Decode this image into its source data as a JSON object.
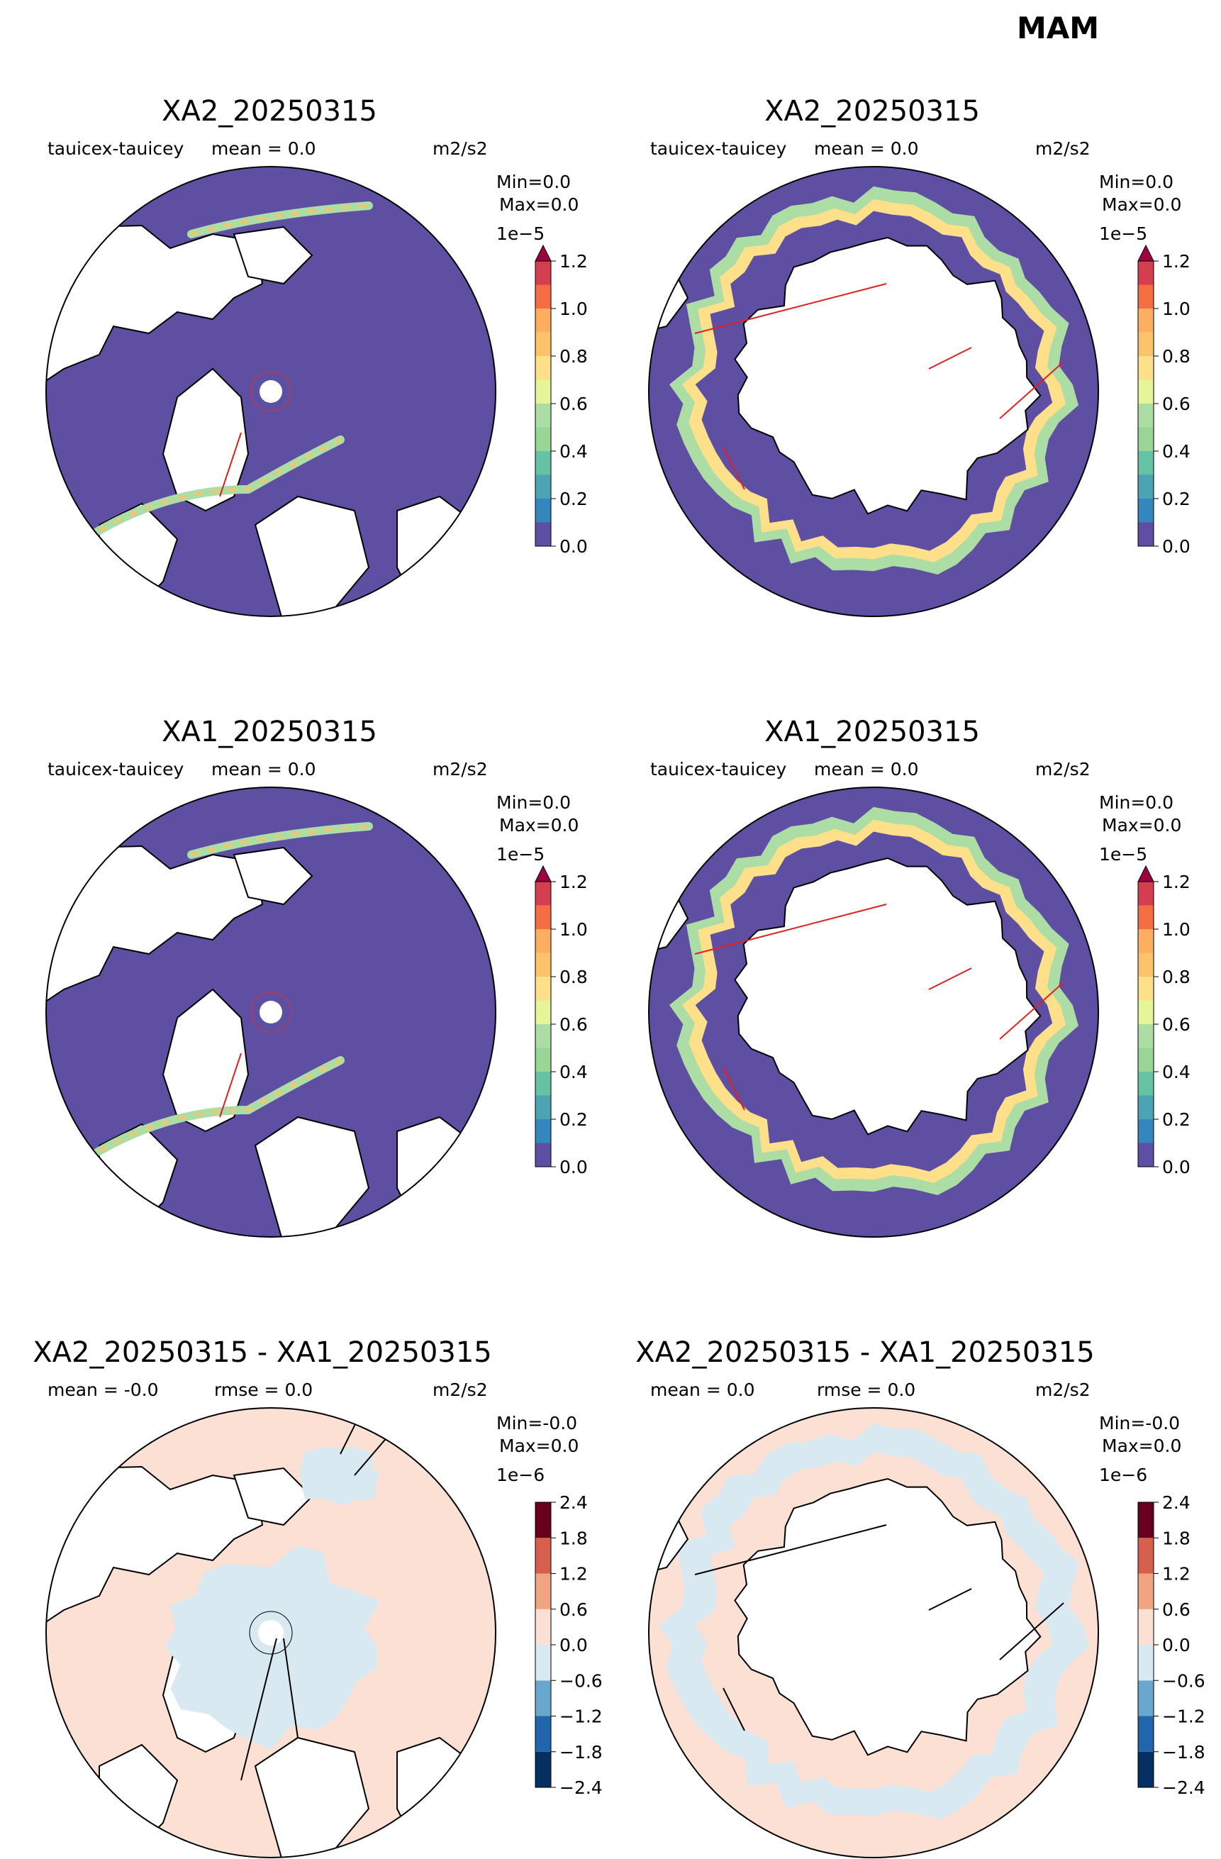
{
  "figure": {
    "season": "MAM"
  },
  "chart_data": [
    {
      "type": "heatmap",
      "projection": "north-polar-stereographic",
      "title": "XA2_20250315",
      "variable": "tauicex-tauicey",
      "stat1": "mean = 0.0",
      "stat2": "",
      "units": "m2/s2",
      "minmax": [
        "Min=0.0",
        "Max=0.0"
      ],
      "colorbar": {
        "exponent": "1e−5",
        "extend": "max",
        "ticks": [
          "1.2",
          "1.0",
          "0.8",
          "0.6",
          "0.4",
          "0.2",
          "0.0"
        ],
        "levels": [
          0.0,
          0.1,
          0.2,
          0.3,
          0.4,
          0.5,
          0.6,
          0.7,
          0.8,
          0.9,
          1.0,
          1.1,
          1.2
        ],
        "colors": [
          "#5e4fa2",
          "#3288bd",
          "#4ba3b3",
          "#66c2a5",
          "#99d594",
          "#abdda4",
          "#e6f598",
          "#fee08b",
          "#fdc36a",
          "#fdae61",
          "#f46d43",
          "#d53e4f",
          "#9e0142"
        ]
      }
    },
    {
      "type": "heatmap",
      "projection": "south-polar-stereographic",
      "title": "XA2_20250315",
      "variable": "tauicex-tauicey",
      "stat1": "mean = 0.0",
      "stat2": "",
      "units": "m2/s2",
      "minmax": [
        "Min=0.0",
        "Max=0.0"
      ],
      "colorbar": {
        "exponent": "1e−5",
        "extend": "max",
        "ticks": [
          "1.2",
          "1.0",
          "0.8",
          "0.6",
          "0.4",
          "0.2",
          "0.0"
        ],
        "levels": [
          0.0,
          0.1,
          0.2,
          0.3,
          0.4,
          0.5,
          0.6,
          0.7,
          0.8,
          0.9,
          1.0,
          1.1,
          1.2
        ],
        "colors": [
          "#5e4fa2",
          "#3288bd",
          "#4ba3b3",
          "#66c2a5",
          "#99d594",
          "#abdda4",
          "#e6f598",
          "#fee08b",
          "#fdc36a",
          "#fdae61",
          "#f46d43",
          "#d53e4f",
          "#9e0142"
        ]
      }
    },
    {
      "type": "heatmap",
      "projection": "north-polar-stereographic",
      "title": "XA1_20250315",
      "variable": "tauicex-tauicey",
      "stat1": "mean = 0.0",
      "stat2": "",
      "units": "m2/s2",
      "minmax": [
        "Min=0.0",
        "Max=0.0"
      ],
      "colorbar": {
        "exponent": "1e−5",
        "extend": "max",
        "ticks": [
          "1.2",
          "1.0",
          "0.8",
          "0.6",
          "0.4",
          "0.2",
          "0.0"
        ],
        "levels": [
          0.0,
          0.1,
          0.2,
          0.3,
          0.4,
          0.5,
          0.6,
          0.7,
          0.8,
          0.9,
          1.0,
          1.1,
          1.2
        ],
        "colors": [
          "#5e4fa2",
          "#3288bd",
          "#4ba3b3",
          "#66c2a5",
          "#99d594",
          "#abdda4",
          "#e6f598",
          "#fee08b",
          "#fdc36a",
          "#fdae61",
          "#f46d43",
          "#d53e4f",
          "#9e0142"
        ]
      }
    },
    {
      "type": "heatmap",
      "projection": "south-polar-stereographic",
      "title": "XA1_20250315",
      "variable": "tauicex-tauicey",
      "stat1": "mean = 0.0",
      "stat2": "",
      "units": "m2/s2",
      "minmax": [
        "Min=0.0",
        "Max=0.0"
      ],
      "colorbar": {
        "exponent": "1e−5",
        "extend": "max",
        "ticks": [
          "1.2",
          "1.0",
          "0.8",
          "0.6",
          "0.4",
          "0.2",
          "0.0"
        ],
        "levels": [
          0.0,
          0.1,
          0.2,
          0.3,
          0.4,
          0.5,
          0.6,
          0.7,
          0.8,
          0.9,
          1.0,
          1.1,
          1.2
        ],
        "colors": [
          "#5e4fa2",
          "#3288bd",
          "#4ba3b3",
          "#66c2a5",
          "#99d594",
          "#abdda4",
          "#e6f598",
          "#fee08b",
          "#fdc36a",
          "#fdae61",
          "#f46d43",
          "#d53e4f",
          "#9e0142"
        ]
      }
    },
    {
      "type": "heatmap",
      "projection": "north-polar-stereographic",
      "title": "XA2_20250315 - XA1_20250315",
      "variable": "",
      "stat1": "mean = -0.0",
      "stat2": "rmse = 0.0",
      "units": "m2/s2",
      "minmax": [
        "Min=-0.0",
        "Max=0.0"
      ],
      "colorbar": {
        "exponent": "1e−6",
        "extend": "none",
        "ticks": [
          "2.4",
          "1.8",
          "1.2",
          "0.6",
          "0.0",
          "−0.6",
          "−1.2",
          "−1.8",
          "−2.4"
        ],
        "levels": [
          -2.4,
          -1.8,
          -1.2,
          -0.6,
          0.0,
          0.6,
          1.2,
          1.8,
          2.4
        ],
        "colors": [
          "#053061",
          "#2166ac",
          "#4393c3",
          "#92c5de",
          "#d9e9f1",
          "#fbe0d3",
          "#f4a582",
          "#d6604d",
          "#b2182b",
          "#67001f"
        ]
      }
    },
    {
      "type": "heatmap",
      "projection": "south-polar-stereographic",
      "title": "XA2_20250315 - XA1_20250315",
      "variable": "",
      "stat1": "mean = 0.0",
      "stat2": "rmse = 0.0",
      "units": "m2/s2",
      "minmax": [
        "Min=-0.0",
        "Max=0.0"
      ],
      "colorbar": {
        "exponent": "1e−6",
        "extend": "none",
        "ticks": [
          "2.4",
          "1.8",
          "1.2",
          "0.6",
          "0.0",
          "−0.6",
          "−1.2",
          "−1.8",
          "−2.4"
        ],
        "levels": [
          -2.4,
          -1.8,
          -1.2,
          -0.6,
          0.0,
          0.6,
          1.2,
          1.8,
          2.4
        ],
        "colors": [
          "#053061",
          "#2166ac",
          "#4393c3",
          "#92c5de",
          "#d9e9f1",
          "#fbe0d3",
          "#f4a582",
          "#d6604d",
          "#b2182b",
          "#67001f"
        ]
      }
    }
  ]
}
